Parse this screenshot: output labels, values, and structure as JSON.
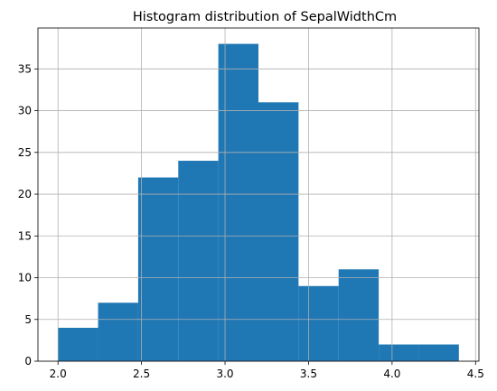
{
  "chart_data": {
    "type": "bar",
    "subtype": "histogram",
    "title": "Histogram distribution of SepalWidthCm",
    "xlabel": "",
    "ylabel": "",
    "bin_edges": [
      2.0,
      2.24,
      2.48,
      2.72,
      2.96,
      3.2,
      3.44,
      3.68,
      3.92,
      4.16,
      4.4
    ],
    "values": [
      4,
      7,
      22,
      24,
      38,
      31,
      9,
      11,
      2,
      2
    ],
    "xlim": [
      1.88,
      4.52
    ],
    "ylim": [
      0,
      39.9
    ],
    "xticks": [
      2.0,
      2.5,
      3.0,
      3.5,
      4.0,
      4.5
    ],
    "xtick_labels": [
      "2.0",
      "2.5",
      "3.0",
      "3.5",
      "4.0",
      "4.5"
    ],
    "yticks": [
      0,
      5,
      10,
      15,
      20,
      25,
      30,
      35
    ],
    "ytick_labels": [
      "0",
      "5",
      "10",
      "15",
      "20",
      "25",
      "30",
      "35"
    ],
    "grid": true,
    "colors": {
      "bar": "#1f77b4"
    }
  }
}
